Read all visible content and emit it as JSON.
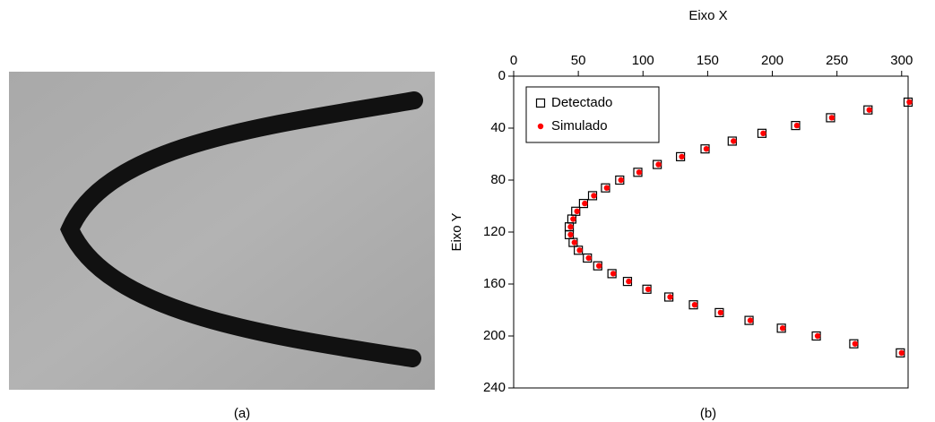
{
  "figure": {
    "captions": [
      "(a)",
      "(b)"
    ]
  },
  "chart_data": {
    "type": "scatter",
    "x_label": "Eixo X",
    "y_label": "Eixo Y",
    "xaxis_position": "top",
    "y_inverted": true,
    "legend": "upper left",
    "xlim": [
      0,
      305
    ],
    "xticks": [
      0,
      50,
      100,
      150,
      200,
      250,
      300
    ],
    "ylim": [
      0,
      240
    ],
    "yticks": [
      0,
      40,
      80,
      120,
      160,
      200,
      240
    ],
    "series": [
      {
        "name": "Detectado",
        "color": "#000000",
        "marker": "square-open",
        "x": [
          305,
          274,
          245,
          218,
          192,
          169,
          148,
          129,
          111,
          96,
          82,
          71,
          61,
          54,
          48,
          45,
          43,
          43,
          46,
          50,
          57,
          65,
          76,
          88,
          103,
          120,
          139,
          159,
          182,
          207,
          234,
          263,
          299
        ],
        "values": [
          20,
          26,
          32,
          38,
          44,
          50,
          56,
          62,
          68,
          74,
          80,
          86,
          92,
          98,
          104,
          110,
          116,
          122,
          128,
          134,
          140,
          146,
          152,
          158,
          164,
          170,
          176,
          182,
          188,
          194,
          200,
          206,
          213
        ]
      },
      {
        "name": "Simulado",
        "color": "#ff0000",
        "marker": "dot",
        "x": [
          306,
          275,
          246,
          219,
          193,
          170,
          149,
          130,
          112,
          97,
          83,
          72,
          62,
          55,
          49,
          46,
          44,
          44,
          47,
          51,
          58,
          66,
          77,
          89,
          104,
          121,
          140,
          160,
          183,
          208,
          235,
          264,
          300
        ],
        "values": [
          20,
          26,
          32,
          38,
          44,
          50,
          56,
          62,
          68,
          74,
          80,
          86,
          92,
          98,
          104,
          110,
          116,
          122,
          128,
          134,
          140,
          146,
          152,
          158,
          164,
          170,
          176,
          182,
          188,
          194,
          200,
          206,
          213
        ]
      }
    ]
  }
}
